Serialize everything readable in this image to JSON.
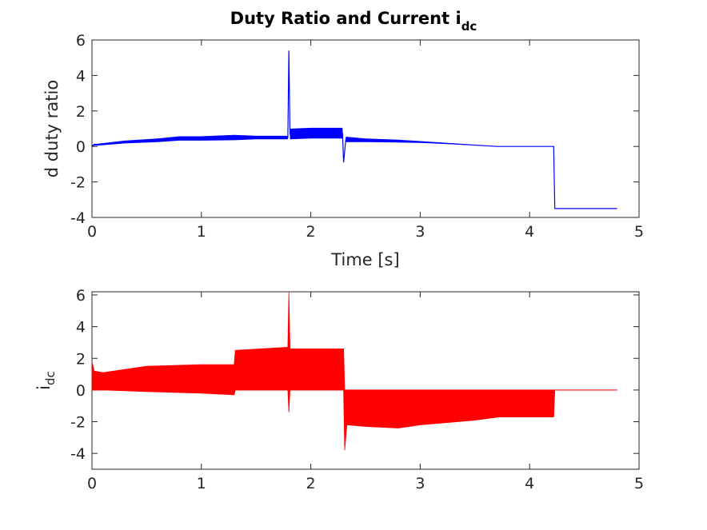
{
  "title": {
    "main": "Duty Ratio and Current i",
    "sub": "dc"
  },
  "chart_data": [
    {
      "type": "line",
      "ylabel": "d duty ratio",
      "xlabel": "Time [s]",
      "xlim": [
        0,
        5
      ],
      "ylim": [
        -4,
        6
      ],
      "xticks": [
        "0",
        "1",
        "2",
        "3",
        "4",
        "5"
      ],
      "yticks": [
        "-4",
        "-2",
        "0",
        "2",
        "4",
        "6"
      ],
      "color": "#0000ff",
      "series": [
        {
          "x": [
            0,
            0.02,
            0.05,
            0.3,
            0.6,
            0.8,
            1.0,
            1.3,
            1.5,
            1.79,
            1.8,
            1.81,
            2.0,
            2.29,
            2.3,
            2.32,
            2.5,
            2.8,
            3.0,
            3.3,
            3.7,
            4.0,
            4.22,
            4.23,
            4.5,
            4.8
          ],
          "y": [
            0.0,
            0.1,
            0.1,
            0.25,
            0.35,
            0.45,
            0.45,
            0.5,
            0.5,
            0.5,
            5.4,
            0.7,
            0.75,
            0.75,
            -0.9,
            0.4,
            0.35,
            0.3,
            0.25,
            0.15,
            0.0,
            0.0,
            0.0,
            -3.5,
            -3.5,
            -3.5
          ],
          "band": [
            0.05,
            0.05,
            0.05,
            0.08,
            0.1,
            0.12,
            0.12,
            0.15,
            0.1,
            0.1,
            0.0,
            0.3,
            0.3,
            0.3,
            0.0,
            0.15,
            0.1,
            0.08,
            0.05,
            0.03,
            0.0,
            0.0,
            0.0,
            0.0,
            0.0,
            0.0
          ]
        }
      ]
    },
    {
      "type": "line",
      "ylabel": "i",
      "ylabel_sub": "dc",
      "xlim": [
        0,
        5
      ],
      "ylim": [
        -5,
        6.2
      ],
      "xticks": [
        "0",
        "1",
        "2",
        "3",
        "4",
        "5"
      ],
      "yticks": [
        "-4",
        "-2",
        "0",
        "2",
        "4",
        "6"
      ],
      "color": "#ff0000",
      "series": [
        {
          "x": [
            0,
            0.02,
            0.1,
            0.5,
            1.0,
            1.3,
            1.31,
            1.79,
            1.8,
            1.81,
            2.0,
            2.3,
            2.31,
            2.33,
            2.5,
            2.8,
            3.0,
            3.5,
            3.72,
            3.73,
            4.22,
            4.23,
            4.8
          ],
          "top": [
            1.8,
            1.2,
            1.1,
            1.5,
            1.6,
            1.6,
            2.5,
            2.7,
            6.2,
            2.6,
            2.6,
            2.6,
            0.0,
            0.0,
            0.0,
            0.0,
            0.0,
            0.0,
            0.0,
            0.0,
            0.0,
            0.0,
            0.0
          ],
          "bottom": [
            0.0,
            0.0,
            0.0,
            -0.1,
            -0.2,
            -0.3,
            0.0,
            0.0,
            -1.4,
            0.0,
            0.0,
            0.0,
            -3.8,
            -2.2,
            -2.3,
            -2.4,
            -2.2,
            -1.9,
            -1.7,
            -1.7,
            -1.7,
            0.0,
            0.0
          ]
        }
      ]
    }
  ]
}
